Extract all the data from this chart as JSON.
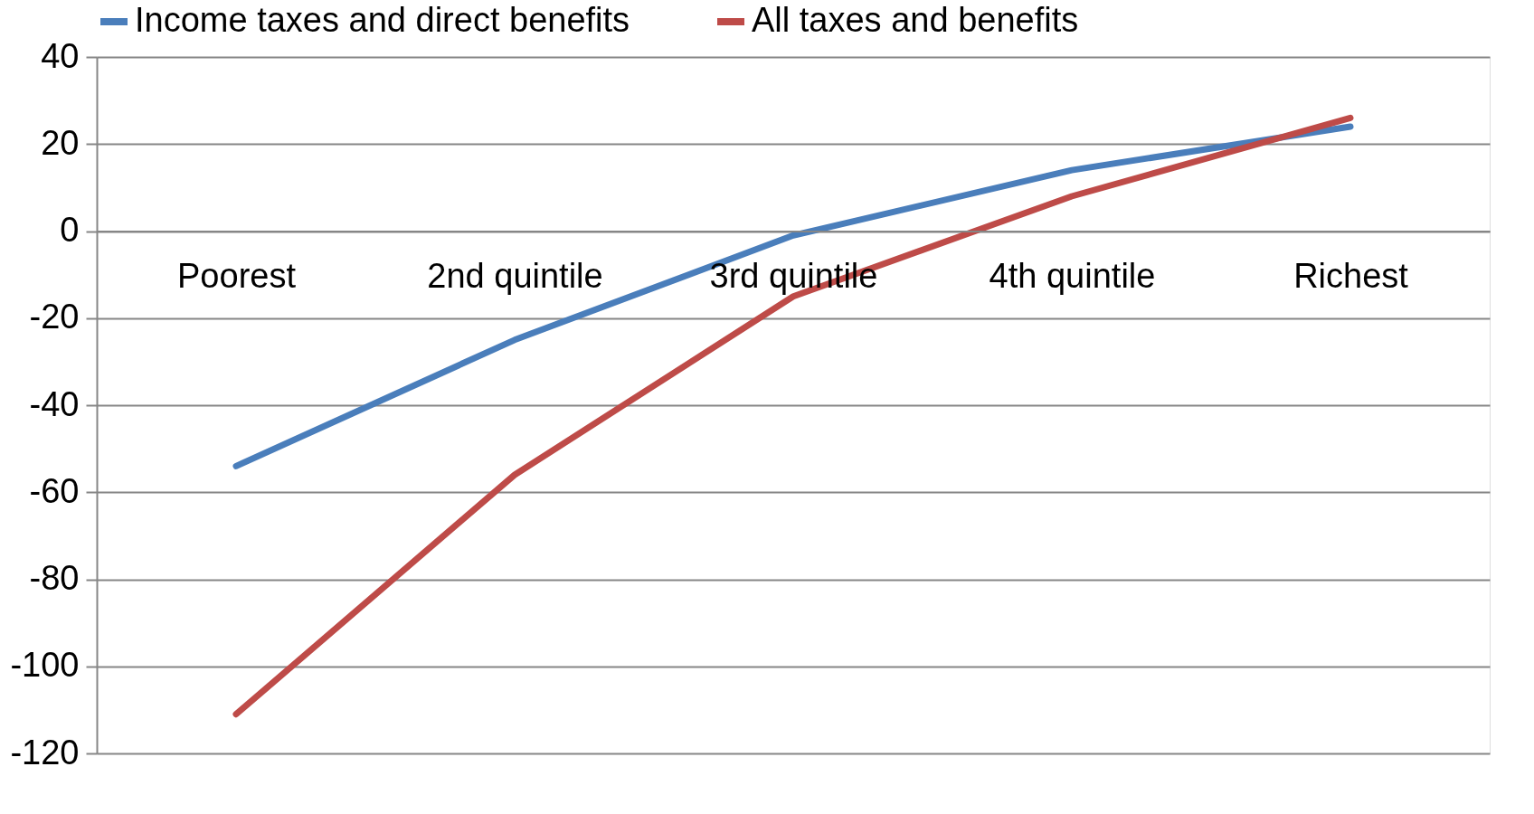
{
  "chart_data": {
    "type": "line",
    "categories": [
      "Poorest",
      "2nd quintile",
      "3rd quintile",
      "4th quintile",
      "Richest"
    ],
    "series": [
      {
        "name": "Income taxes and direct benefits",
        "color": "#4a7ebb",
        "values": [
          -54,
          -25,
          -1,
          14,
          24
        ]
      },
      {
        "name": "All taxes and benefits",
        "color": "#be4b48",
        "values": [
          -111,
          -56,
          -15,
          8,
          26
        ]
      }
    ],
    "ylim": [
      -120,
      40
    ],
    "yticks": [
      -120,
      -100,
      -80,
      -60,
      -40,
      -20,
      0,
      20,
      40
    ],
    "grid": "y",
    "legend": "top",
    "marker": "none",
    "line_style": "solid"
  }
}
